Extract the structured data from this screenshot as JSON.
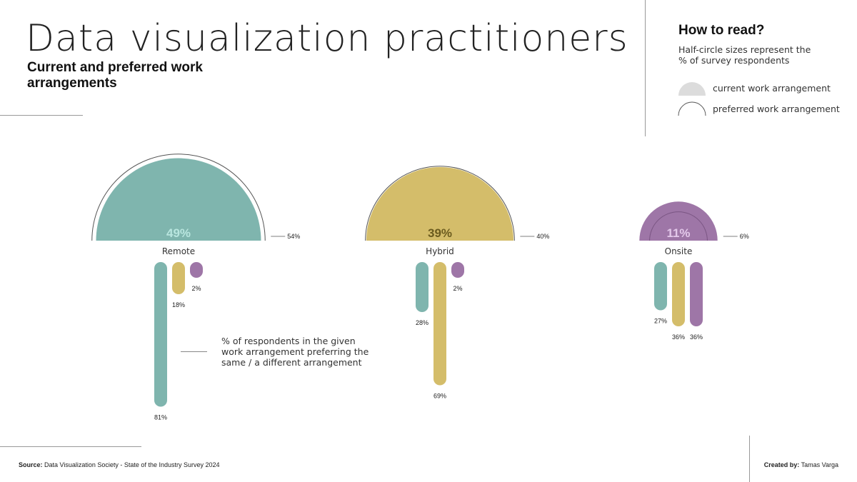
{
  "header": {
    "title": "Data visualization practitioners",
    "subtitle": "Current and preferred work arrangements"
  },
  "how_to_read": {
    "title": "How to read?",
    "description": "Half-circle sizes represent the % of survey respondents",
    "legend_current": "current work arrangement",
    "legend_preferred": "preferred work arrangement"
  },
  "annotation": "% of respondents in the given work arrangement preferring the same / a different arrangement",
  "footer": {
    "source_label": "Source:",
    "source_text": "Data Visualization Society - State of the Industry Survey 2024",
    "credit_label": "Created by:",
    "credit_text": "Tamas Varga"
  },
  "colors": {
    "remote": "#7fb5ae",
    "hybrid": "#d4bd6a",
    "onsite": "#9e76a7",
    "legend_current": "#dcdcdc",
    "outline": "#555555",
    "remote_pct_text": "#b9e6df",
    "hybrid_pct_text": "#6b5b1e",
    "onsite_pct_text": "#e3c8ea"
  },
  "chart_data": {
    "type": "half-circle + bar",
    "categories": [
      "Remote",
      "Hybrid",
      "Onsite"
    ],
    "current": [
      49,
      39,
      11
    ],
    "preferred": [
      54,
      40,
      6
    ],
    "current_labels": [
      "49%",
      "39%",
      "11%"
    ],
    "preferred_labels": [
      "54%",
      "40%",
      "6%"
    ],
    "transitions": [
      {
        "from": "Remote",
        "values": [
          81,
          18,
          2
        ],
        "labels": [
          "81%",
          "18%",
          "2%"
        ]
      },
      {
        "from": "Hybrid",
        "values": [
          28,
          69,
          2
        ],
        "labels": [
          "28%",
          "69%",
          "2%"
        ]
      },
      {
        "from": "Onsite",
        "values": [
          27,
          36,
          36
        ],
        "labels": [
          "27%",
          "36%",
          "36%"
        ]
      }
    ],
    "bar_series_order": [
      "Remote",
      "Hybrid",
      "Onsite"
    ]
  }
}
